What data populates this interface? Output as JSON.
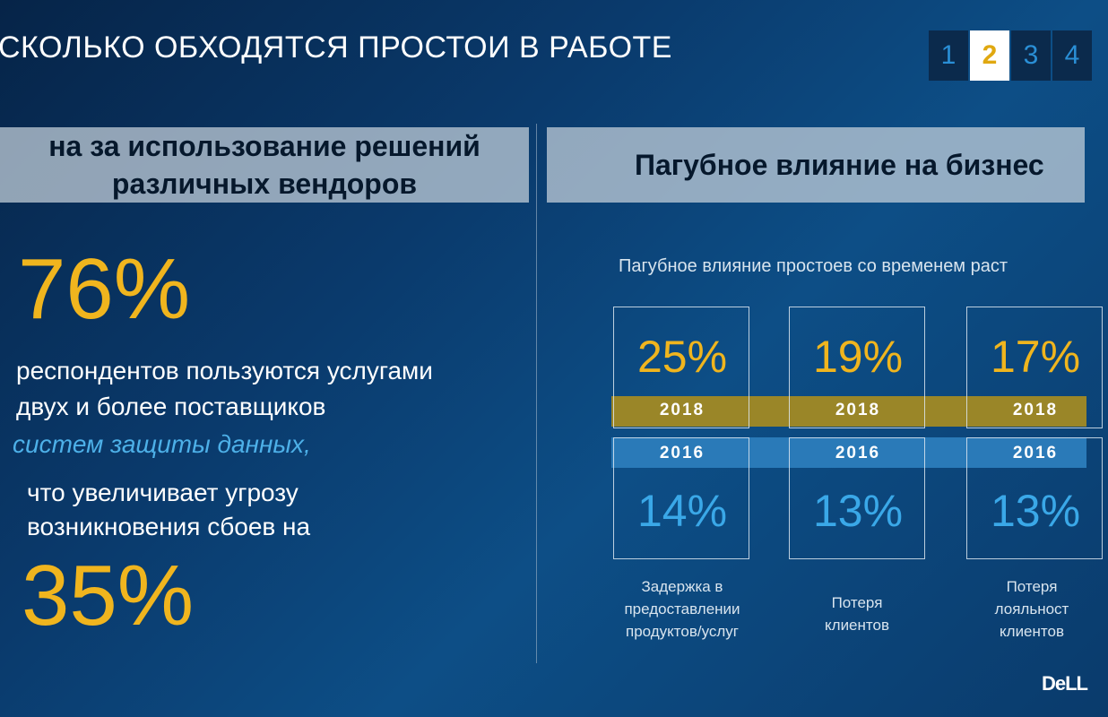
{
  "header": {
    "title": "СКОЛЬКО ОБХОДЯТСЯ ПРОСТОИ В РАБОТЕ",
    "pages": [
      "1",
      "2",
      "3",
      "4"
    ],
    "active_page": "2"
  },
  "left_panel": {
    "header_lines": [
      "на за использование решений",
      "различных вендоров"
    ],
    "stat_top": "76%",
    "text_lines": [
      "респондентов пользуются услугами",
      "двух и более поставщиков",
      "систем защиты данных,",
      "что увеличивает угрозу",
      "возникновения сбоев на"
    ],
    "stat_bottom": "35%"
  },
  "right_panel": {
    "header": "Пагубное влияние на бизнес",
    "subtitle": "Пагубное влияние простоев со временем раст",
    "year_top": "2018",
    "year_bottom": "2016",
    "columns": [
      {
        "pct_2018": "25%",
        "pct_2016": "14%",
        "label_lines": [
          "Задержка в",
          "предоставлении",
          "продуктов/услуг"
        ]
      },
      {
        "pct_2018": "19%",
        "pct_2016": "13%",
        "label_lines": [
          "Потеря",
          "клиентов"
        ]
      },
      {
        "pct_2018": "17%",
        "pct_2016": "13%",
        "label_lines": [
          "Потеря",
          "лояльност",
          "клиентов"
        ]
      }
    ]
  },
  "logo": {
    "text": "DeLL"
  }
}
